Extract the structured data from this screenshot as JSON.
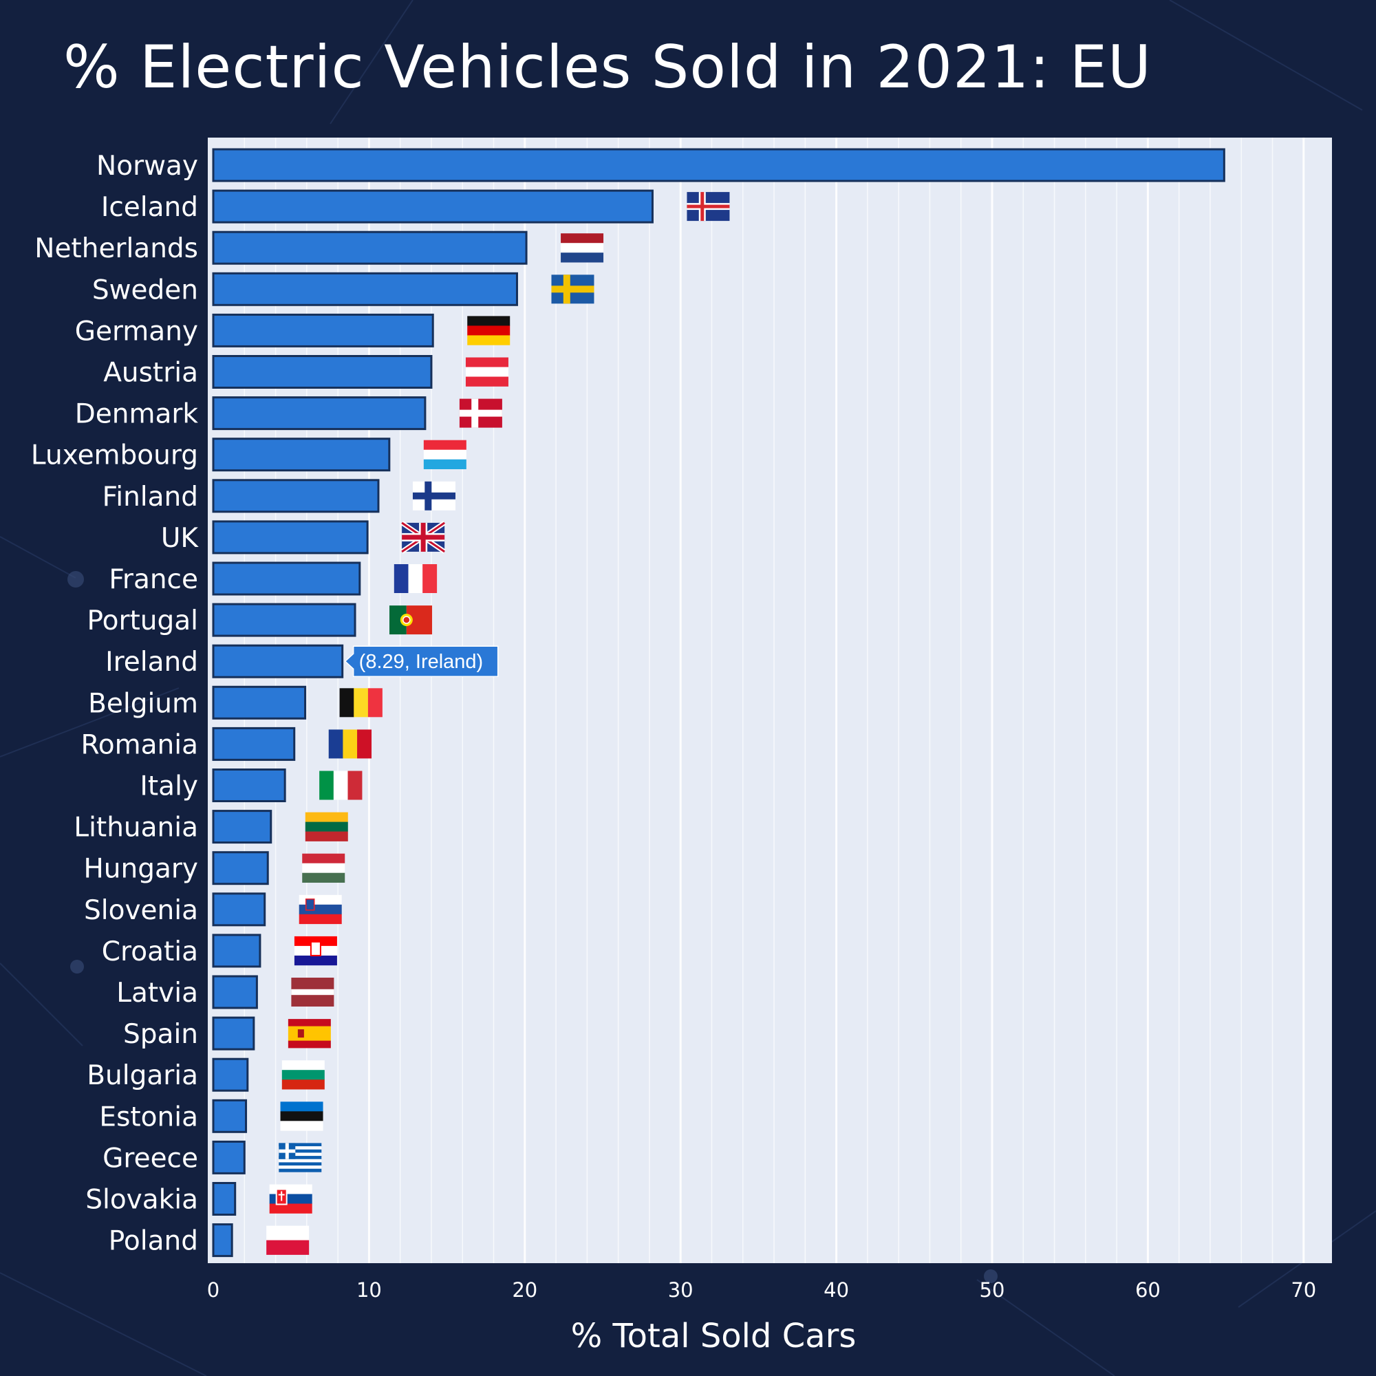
{
  "title": "% Electric Vehicles Sold in 2021: EU",
  "colors": {
    "background": "#13203f",
    "plot_background": "#e6ebf5",
    "bar_fill": "#2a78d6",
    "bar_stroke": "#16305a",
    "text": "#ffffff",
    "tooltip": "#2a78d6"
  },
  "tooltip": {
    "text": "(8.29, Ireland)",
    "country": "Ireland"
  },
  "chart_data": {
    "type": "bar",
    "orientation": "horizontal",
    "title": "% Electric Vehicles Sold in 2021: EU",
    "xlabel": "% Total Sold Cars",
    "ylabel": "",
    "xlim": [
      0,
      70
    ],
    "xticks": [
      0,
      10,
      20,
      30,
      40,
      50,
      60,
      70
    ],
    "grid": true,
    "legend": "none",
    "categories": [
      "Norway",
      "Iceland",
      "Netherlands",
      "Sweden",
      "Germany",
      "Austria",
      "Denmark",
      "Luxembourg",
      "Finland",
      "UK",
      "France",
      "Portugal",
      "Ireland",
      "Belgium",
      "Romania",
      "Italy",
      "Lithuania",
      "Hungary",
      "Slovenia",
      "Croatia",
      "Latvia",
      "Spain",
      "Bulgaria",
      "Estonia",
      "Greece",
      "Slovakia",
      "Poland"
    ],
    "values": [
      64.9,
      28.2,
      20.1,
      19.5,
      14.1,
      14.0,
      13.6,
      11.3,
      10.6,
      9.9,
      9.4,
      9.1,
      8.29,
      5.9,
      5.2,
      4.6,
      3.7,
      3.5,
      3.3,
      3.0,
      2.8,
      2.6,
      2.2,
      2.1,
      2.0,
      1.4,
      1.2
    ],
    "flags": [
      "",
      "iceland-flag-icon",
      "netherlands-flag-icon",
      "sweden-flag-icon",
      "germany-flag-icon",
      "austria-flag-icon",
      "denmark-flag-icon",
      "luxembourg-flag-icon",
      "finland-flag-icon",
      "uk-flag-icon",
      "france-flag-icon",
      "portugal-flag-icon",
      "",
      "belgium-flag-icon",
      "romania-flag-icon",
      "italy-flag-icon",
      "lithuania-flag-icon",
      "hungary-flag-icon",
      "slovenia-flag-icon",
      "croatia-flag-icon",
      "latvia-flag-icon",
      "spain-flag-icon",
      "bulgaria-flag-icon",
      "estonia-flag-icon",
      "greece-flag-icon",
      "slovakia-flag-icon",
      "poland-flag-icon"
    ]
  }
}
